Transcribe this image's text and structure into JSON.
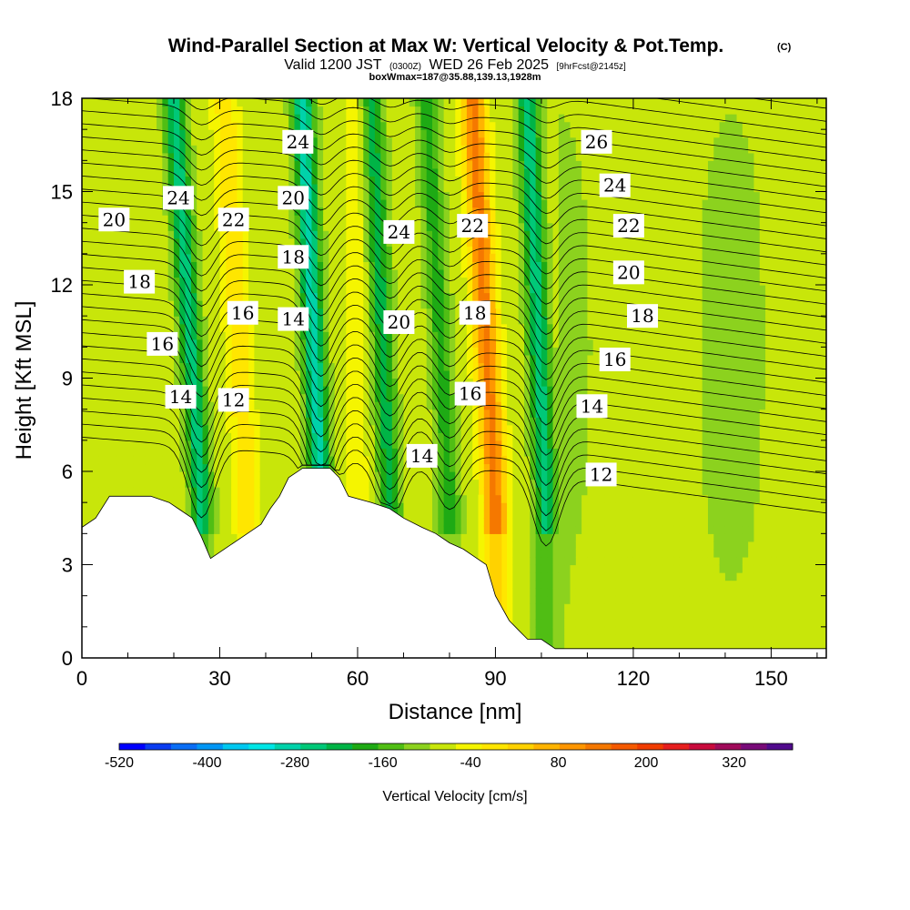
{
  "chart_data": {
    "type": "heatmap",
    "title_main": "Wind-Parallel Section at Max W: Vertical Velocity & Pot.Temp.",
    "copyright": "(C)",
    "subtitle_valid": "Valid 1200 JST",
    "subtitle_utc": "(0300Z)",
    "subtitle_date": "WED 26 Feb 2025",
    "subtitle_fcst": "[9hrFcst@2145z]",
    "subtitle_box": "boxWmax=187@35.88,139.13,1928m",
    "xlabel": "Distance [nm]",
    "ylabel": "Height [Kft MSL]",
    "xlim": [
      0,
      162
    ],
    "ylim": [
      0,
      18
    ],
    "x_ticks": [
      0,
      30,
      60,
      90,
      120,
      150
    ],
    "y_ticks": [
      0,
      3,
      6,
      9,
      12,
      15,
      18
    ],
    "x_tick_labels": [
      "0",
      "30",
      "60",
      "90",
      "120",
      "150"
    ],
    "y_tick_labels": [
      "0",
      "3",
      "6",
      "9",
      "12",
      "15",
      "18"
    ],
    "colorbar": {
      "label": "Vertical Velocity [cm/s]",
      "min": -520,
      "max": 400,
      "step": 40,
      "tick_values": [
        -520,
        -400,
        -280,
        -160,
        -40,
        80,
        200,
        320
      ],
      "tick_labels": [
        "-520",
        "-400",
        "-280",
        "-160",
        "-40",
        "80",
        "200",
        "320"
      ],
      "colors": [
        "#0000ff",
        "#0a3cf0",
        "#0a6ef5",
        "#0096f5",
        "#00c8f0",
        "#00e6e6",
        "#00d2aa",
        "#00c878",
        "#00b446",
        "#1eaa14",
        "#50be14",
        "#8cd21e",
        "#c8e60a",
        "#f5f500",
        "#ffe600",
        "#ffd200",
        "#ffb400",
        "#ff9600",
        "#f57800",
        "#f55a00",
        "#f03c00",
        "#e61e1e",
        "#c80a3c",
        "#a00a5a",
        "#780a78",
        "#500a8c"
      ]
    },
    "vertical_velocity_features": [
      {
        "name": "downdraft",
        "x_center_at_top": 20,
        "x_center_at_base": 26,
        "w_peak": -200
      },
      {
        "name": "updraft",
        "x_center_at_top": 31,
        "x_center_at_base": 36,
        "w_peak": 100
      },
      {
        "name": "downdraft",
        "x_center_at_top": 48,
        "x_center_at_base": 52,
        "w_peak": -240
      },
      {
        "name": "updraft",
        "x_center_at_top": 60,
        "x_center_at_base": 60,
        "w_peak": 40
      },
      {
        "name": "downdraft",
        "x_center_at_top": 63,
        "x_center_at_base": 67,
        "w_peak": -160
      },
      {
        "name": "downdraft",
        "x_center_at_top": 75,
        "x_center_at_base": 80,
        "w_peak": -120
      },
      {
        "name": "updraft",
        "x_center_at_top": 85,
        "x_center_at_base": 90,
        "w_peak": 240
      },
      {
        "name": "downdraft",
        "x_center_at_top": 97,
        "x_center_at_base": 101,
        "w_peak": -200
      }
    ],
    "potential_temperature_contour_labels": [
      {
        "value": "20",
        "x": 7,
        "y": 14.1
      },
      {
        "value": "24",
        "x": 21,
        "y": 14.8
      },
      {
        "value": "22",
        "x": 33,
        "y": 14.1
      },
      {
        "value": "24",
        "x": 47,
        "y": 16.6
      },
      {
        "value": "20",
        "x": 46,
        "y": 14.8
      },
      {
        "value": "18",
        "x": 12.5,
        "y": 12.1
      },
      {
        "value": "18",
        "x": 46,
        "y": 12.9
      },
      {
        "value": "16",
        "x": 17.5,
        "y": 10.1
      },
      {
        "value": "16",
        "x": 35,
        "y": 11.1
      },
      {
        "value": "14",
        "x": 46,
        "y": 10.9
      },
      {
        "value": "14",
        "x": 21.5,
        "y": 8.4
      },
      {
        "value": "12",
        "x": 33,
        "y": 8.3
      },
      {
        "value": "24",
        "x": 69,
        "y": 13.7
      },
      {
        "value": "20",
        "x": 69,
        "y": 10.8
      },
      {
        "value": "22",
        "x": 85,
        "y": 13.9
      },
      {
        "value": "18",
        "x": 85.5,
        "y": 11.1
      },
      {
        "value": "16",
        "x": 84.5,
        "y": 8.5
      },
      {
        "value": "14",
        "x": 74,
        "y": 6.5
      },
      {
        "value": "26",
        "x": 112,
        "y": 16.6
      },
      {
        "value": "24",
        "x": 116,
        "y": 15.2
      },
      {
        "value": "22",
        "x": 119,
        "y": 13.9
      },
      {
        "value": "20",
        "x": 119,
        "y": 12.4
      },
      {
        "value": "18",
        "x": 122,
        "y": 11.0
      },
      {
        "value": "16",
        "x": 116,
        "y": 9.6
      },
      {
        "value": "14",
        "x": 111,
        "y": 8.1
      },
      {
        "value": "12",
        "x": 113,
        "y": 5.9
      }
    ],
    "terrain_kft": [
      [
        0,
        4.2
      ],
      [
        3,
        4.5
      ],
      [
        6,
        5.2
      ],
      [
        15,
        5.2
      ],
      [
        19,
        5.0
      ],
      [
        21,
        4.8
      ],
      [
        24,
        4.5
      ],
      [
        26,
        3.9
      ],
      [
        28,
        3.2
      ],
      [
        31,
        3.5
      ],
      [
        34,
        3.8
      ],
      [
        37,
        4.1
      ],
      [
        39,
        4.3
      ],
      [
        41,
        4.8
      ],
      [
        43,
        5.2
      ],
      [
        45,
        5.8
      ],
      [
        48,
        6.1
      ],
      [
        54,
        6.1
      ],
      [
        56,
        5.8
      ],
      [
        58,
        5.2
      ],
      [
        63,
        5.0
      ],
      [
        67,
        4.8
      ],
      [
        70,
        4.5
      ],
      [
        74,
        4.2
      ],
      [
        77,
        4.0
      ],
      [
        80,
        3.7
      ],
      [
        83,
        3.5
      ],
      [
        86,
        3.2
      ],
      [
        88,
        3.0
      ],
      [
        90,
        2.0
      ],
      [
        93,
        1.2
      ],
      [
        95,
        0.9
      ],
      [
        97,
        0.6
      ],
      [
        100,
        0.6
      ],
      [
        103,
        0.3
      ],
      [
        162,
        0.3
      ]
    ]
  }
}
